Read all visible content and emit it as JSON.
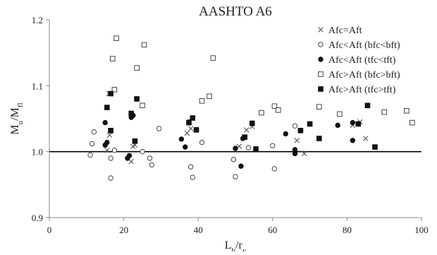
{
  "chart_data": {
    "type": "scatter",
    "title": "AASHTO A6",
    "xlabel": {
      "main": "L",
      "sub1": "b",
      "mid": "/r",
      "sub2": "y"
    },
    "ylabel": {
      "main": "M",
      "sub1": "u",
      "mid": "/M",
      "sub2": "fl"
    },
    "xlim": [
      0,
      100
    ],
    "ylim": [
      0.9,
      1.2
    ],
    "xticks": [
      "0",
      "20",
      "40",
      "60",
      "80",
      "100"
    ],
    "yticks": [
      "0.9",
      "1.0",
      "1.1",
      "1.2"
    ],
    "reference_line_y": 1.0,
    "grid": false,
    "legend_position": "top-right",
    "series": [
      {
        "name": "Afc=Aft",
        "marker": "x",
        "points": [
          [
            16.0,
            1.088
          ],
          [
            15.5,
            1.002
          ],
          [
            16.2,
            1.025
          ],
          [
            22.0,
            0.985
          ],
          [
            22.5,
            1.008
          ],
          [
            23.0,
            1.01
          ],
          [
            37.0,
            1.028
          ],
          [
            38.0,
            1.035
          ],
          [
            51.0,
            1.008
          ],
          [
            53.0,
            1.033
          ],
          [
            54.5,
            1.038
          ],
          [
            66.5,
            1.017
          ],
          [
            68.5,
            0.997
          ],
          [
            70.0,
            1.042
          ],
          [
            81.5,
            1.04
          ],
          [
            83.5,
            1.045
          ],
          [
            85.0,
            1.02
          ]
        ]
      },
      {
        "name": "Afc<Aft (bfc<bft)",
        "marker": "circle-open",
        "points": [
          [
            11.0,
            0.995
          ],
          [
            11.5,
            1.012
          ],
          [
            12.0,
            1.03
          ],
          [
            16.5,
            0.96
          ],
          [
            16.5,
            0.99
          ],
          [
            17.5,
            1.002
          ],
          [
            25.0,
            1.0
          ],
          [
            27.0,
            0.99
          ],
          [
            27.5,
            0.98
          ],
          [
            29.5,
            1.035
          ],
          [
            38.0,
            0.977
          ],
          [
            38.5,
            0.961
          ],
          [
            41.0,
            1.014
          ],
          [
            49.5,
            0.988
          ],
          [
            50.0,
            0.962
          ],
          [
            53.5,
            1.006
          ],
          [
            60.0,
            1.009
          ],
          [
            60.5,
            0.974
          ],
          [
            66.0,
            1.039
          ]
        ]
      },
      {
        "name": "Afc<Aft (tfc<tft)",
        "marker": "circle-filled",
        "points": [
          [
            15.0,
            1.01
          ],
          [
            15.0,
            1.044
          ],
          [
            15.5,
            1.014
          ],
          [
            21.0,
            0.99
          ],
          [
            21.5,
            0.994
          ],
          [
            22.0,
            1.052
          ],
          [
            22.5,
            1.055
          ],
          [
            35.5,
            1.019
          ],
          [
            36.5,
            1.007
          ],
          [
            37.5,
            1.045
          ],
          [
            50.0,
            1.005
          ],
          [
            51.5,
            0.978
          ],
          [
            52.0,
            1.02
          ],
          [
            63.5,
            1.027
          ],
          [
            66.0,
            0.997
          ],
          [
            66.0,
            1.003
          ],
          [
            77.5,
            1.04
          ],
          [
            81.5,
            1.017
          ],
          [
            81.5,
            1.044
          ]
        ]
      },
      {
        "name": "Afc>Aft (bfc>bft)",
        "marker": "square-open",
        "points": [
          [
            17.0,
            1.141
          ],
          [
            17.5,
            1.094
          ],
          [
            18.0,
            1.172
          ],
          [
            23.5,
            1.127
          ],
          [
            25.0,
            1.07
          ],
          [
            25.5,
            1.162
          ],
          [
            41.0,
            1.077
          ],
          [
            43.0,
            1.084
          ],
          [
            44.0,
            1.142
          ],
          [
            57.0,
            1.059
          ],
          [
            60.5,
            1.069
          ],
          [
            61.5,
            1.063
          ],
          [
            72.5,
            1.068
          ],
          [
            78.0,
            1.057
          ],
          [
            90.0,
            1.06
          ],
          [
            96.0,
            1.062
          ],
          [
            97.5,
            1.044
          ]
        ]
      },
      {
        "name": "Afc>Aft (tfc>tft)",
        "marker": "square-filled",
        "points": [
          [
            15.5,
            1.067
          ],
          [
            16.5,
            1.032
          ],
          [
            16.5,
            1.088
          ],
          [
            22.0,
            1.058
          ],
          [
            23.0,
            1.016
          ],
          [
            23.5,
            1.08
          ],
          [
            37.5,
            1.044
          ],
          [
            38.5,
            1.051
          ],
          [
            39.5,
            1.033
          ],
          [
            52.5,
            1.022
          ],
          [
            54.5,
            1.043
          ],
          [
            55.5,
            1.004
          ],
          [
            67.5,
            1.032
          ],
          [
            70.0,
            1.042
          ],
          [
            72.5,
            1.02
          ],
          [
            83.0,
            1.042
          ],
          [
            85.5,
            1.07
          ],
          [
            87.5,
            1.007
          ]
        ]
      }
    ]
  }
}
